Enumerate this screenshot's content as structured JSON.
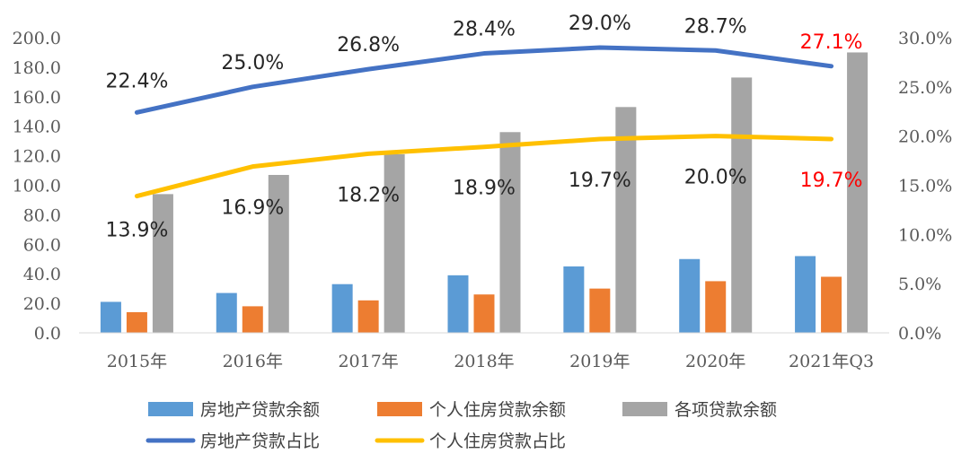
{
  "chart_data": {
    "type": "bar",
    "categories": [
      "2015年",
      "2016年",
      "2017年",
      "2018年",
      "2019年",
      "2020年",
      "2021年Q3"
    ],
    "y_left": {
      "ylim": [
        0,
        200
      ],
      "ticks": [
        "0.0",
        "20.0",
        "40.0",
        "60.0",
        "80.0",
        "100.0",
        "120.0",
        "140.0",
        "160.0",
        "180.0",
        "200.0"
      ]
    },
    "y_right": {
      "ylim": [
        0,
        30
      ],
      "ticks": [
        "0.0%",
        "5.0%",
        "10.0%",
        "15.0%",
        "20.0%",
        "25.0%",
        "30.0%"
      ]
    },
    "grid": false,
    "legend_position": "bottom",
    "bar_series": [
      {
        "name": "房地产贷款余额",
        "color": "#5b9bd5",
        "values": [
          21,
          27,
          33,
          39,
          45,
          50,
          52
        ]
      },
      {
        "name": "个人住房贷款余额",
        "color": "#ed7d31",
        "values": [
          14,
          18,
          22,
          26,
          30,
          35,
          38
        ]
      },
      {
        "name": "各项贷款余额",
        "color": "#a5a5a5",
        "values": [
          94,
          107,
          121,
          136,
          153,
          173,
          190
        ]
      }
    ],
    "line_series": [
      {
        "name": "房地产贷款占比",
        "color": "#4472c4",
        "axis": "right",
        "values": [
          22.4,
          25.0,
          26.8,
          28.4,
          29.0,
          28.7,
          27.1
        ],
        "labels": [
          "22.4%",
          "25.0%",
          "26.8%",
          "28.4%",
          "29.0%",
          "28.7%",
          "27.1%"
        ]
      },
      {
        "name": "个人住房贷款占比",
        "color": "#ffc000",
        "axis": "right",
        "values": [
          13.9,
          16.9,
          18.2,
          18.9,
          19.7,
          20.0,
          19.7
        ],
        "labels": [
          "13.9%",
          "16.9%",
          "18.2%",
          "18.9%",
          "19.7%",
          "20.0%",
          "19.7%"
        ]
      }
    ],
    "highlight_color": "#ff0000"
  }
}
